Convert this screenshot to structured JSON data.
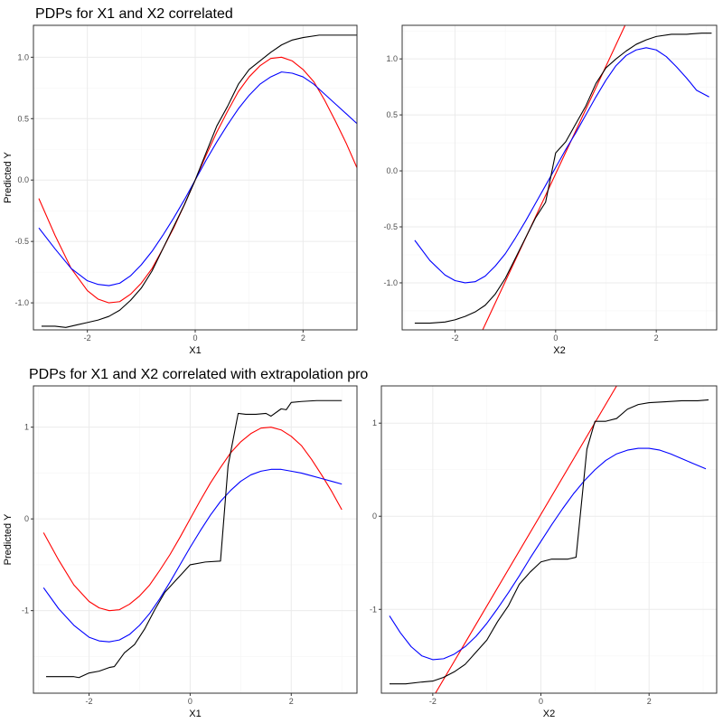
{
  "row_titles": [
    "PDPs for X1 and X2 correlated",
    "PDPs for X1 and X2 correlated with extrapolation pro"
  ],
  "chart_data": [
    {
      "type": "line",
      "xlabel": "X1",
      "ylabel": "Predicted Y",
      "xlim": [
        -3.0,
        3.0
      ],
      "ylim": [
        -1.22,
        1.26
      ],
      "xticks": [
        -2,
        0,
        2
      ],
      "yticks": [
        -1.0,
        -0.5,
        0.0,
        0.5,
        1.0
      ],
      "ytick_labels": [
        "-1.0",
        "-0.5",
        "0.0",
        "0.5",
        "1.0"
      ],
      "grid": true,
      "series": [
        {
          "color": "#ff0000",
          "x": [
            -2.9,
            -2.6,
            -2.3,
            -2.0,
            -1.8,
            -1.6,
            -1.4,
            -1.2,
            -1.0,
            -0.8,
            -0.6,
            -0.4,
            -0.2,
            0,
            0.2,
            0.4,
            0.6,
            0.8,
            1.0,
            1.2,
            1.4,
            1.6,
            1.8,
            2.0,
            2.2,
            2.4,
            2.6,
            2.8,
            3.0
          ],
          "y": [
            -0.15,
            -0.45,
            -0.72,
            -0.9,
            -0.97,
            -1.0,
            -0.99,
            -0.93,
            -0.84,
            -0.72,
            -0.56,
            -0.39,
            -0.2,
            0,
            0.2,
            0.39,
            0.56,
            0.72,
            0.84,
            0.93,
            0.99,
            1.0,
            0.97,
            0.9,
            0.8,
            0.65,
            0.48,
            0.3,
            0.1
          ]
        },
        {
          "color": "#0000ff",
          "x": [
            -2.9,
            -2.6,
            -2.3,
            -2.0,
            -1.8,
            -1.6,
            -1.4,
            -1.2,
            -1.0,
            -0.8,
            -0.6,
            -0.4,
            -0.2,
            0,
            0.2,
            0.4,
            0.6,
            0.8,
            1.0,
            1.2,
            1.4,
            1.6,
            1.8,
            2.0,
            2.2,
            2.4,
            2.6,
            2.8,
            3.0
          ],
          "y": [
            -0.39,
            -0.56,
            -0.72,
            -0.82,
            -0.85,
            -0.86,
            -0.84,
            -0.78,
            -0.69,
            -0.58,
            -0.45,
            -0.31,
            -0.16,
            0.0,
            0.16,
            0.31,
            0.45,
            0.58,
            0.69,
            0.78,
            0.84,
            0.88,
            0.87,
            0.84,
            0.78,
            0.7,
            0.62,
            0.54,
            0.46
          ]
        },
        {
          "color": "#000000",
          "x": [
            -2.85,
            -2.6,
            -2.4,
            -2.2,
            -2.0,
            -1.8,
            -1.6,
            -1.4,
            -1.2,
            -1.0,
            -0.8,
            -0.6,
            -0.4,
            -0.2,
            0,
            0.2,
            0.4,
            0.6,
            0.8,
            1.0,
            1.2,
            1.4,
            1.6,
            1.8,
            2.0,
            2.3,
            2.6,
            2.9,
            3.0
          ],
          "y": [
            -1.19,
            -1.19,
            -1.2,
            -1.18,
            -1.16,
            -1.14,
            -1.11,
            -1.06,
            -0.98,
            -0.88,
            -0.74,
            -0.56,
            -0.38,
            -0.2,
            0.0,
            0.22,
            0.44,
            0.6,
            0.78,
            0.9,
            0.97,
            1.04,
            1.1,
            1.14,
            1.16,
            1.18,
            1.18,
            1.18,
            1.18
          ]
        }
      ]
    },
    {
      "type": "line",
      "xlabel": "X2",
      "ylabel": "",
      "xlim": [
        -3.05,
        3.2
      ],
      "ylim": [
        -1.42,
        1.3
      ],
      "xticks": [
        -2,
        0,
        2
      ],
      "yticks": [
        -1.0,
        -0.5,
        0.0,
        0.5,
        1.0
      ],
      "ytick_labels": [
        "-1.0",
        "-0.5",
        "0.0",
        "0.5",
        "1.0"
      ],
      "grid": true,
      "series": [
        {
          "color": "#ff0000",
          "x": [
            -1.45,
            1.38
          ],
          "y": [
            -1.42,
            1.3
          ]
        },
        {
          "color": "#0000ff",
          "x": [
            -2.8,
            -2.5,
            -2.2,
            -2.0,
            -1.8,
            -1.6,
            -1.4,
            -1.2,
            -1.0,
            -0.8,
            -0.6,
            -0.4,
            -0.2,
            0,
            0.2,
            0.4,
            0.6,
            0.8,
            1.0,
            1.2,
            1.4,
            1.6,
            1.8,
            2.0,
            2.2,
            2.4,
            2.6,
            2.8,
            3.05
          ],
          "y": [
            -0.62,
            -0.8,
            -0.93,
            -0.98,
            -1.0,
            -0.99,
            -0.94,
            -0.85,
            -0.74,
            -0.6,
            -0.45,
            -0.29,
            -0.13,
            0.03,
            0.19,
            0.34,
            0.5,
            0.66,
            0.81,
            0.94,
            1.03,
            1.08,
            1.1,
            1.08,
            1.02,
            0.93,
            0.83,
            0.72,
            0.66
          ]
        },
        {
          "color": "#000000",
          "x": [
            -2.8,
            -2.5,
            -2.2,
            -2.0,
            -1.8,
            -1.6,
            -1.4,
            -1.2,
            -1.0,
            -0.8,
            -0.6,
            -0.4,
            -0.2,
            0,
            0.2,
            0.4,
            0.6,
            0.8,
            1.0,
            1.2,
            1.4,
            1.6,
            1.8,
            2.0,
            2.3,
            2.6,
            2.9,
            3.1
          ],
          "y": [
            -1.36,
            -1.36,
            -1.35,
            -1.33,
            -1.3,
            -1.26,
            -1.2,
            -1.1,
            -0.96,
            -0.78,
            -0.6,
            -0.42,
            -0.28,
            0.16,
            0.26,
            0.42,
            0.58,
            0.78,
            0.92,
            1.0,
            1.07,
            1.13,
            1.17,
            1.2,
            1.22,
            1.22,
            1.23,
            1.23
          ]
        }
      ]
    },
    {
      "type": "line",
      "xlabel": "X1",
      "ylabel": "Predicted Y",
      "xlim": [
        -3.1,
        3.3
      ],
      "ylim": [
        -1.9,
        1.45
      ],
      "xticks": [
        -2,
        0,
        2
      ],
      "yticks": [
        -1,
        0,
        1
      ],
      "ytick_labels": [
        "-1",
        "0",
        "1"
      ],
      "grid": true,
      "series": [
        {
          "color": "#ff0000",
          "x": [
            -2.9,
            -2.6,
            -2.3,
            -2.0,
            -1.8,
            -1.6,
            -1.4,
            -1.2,
            -1.0,
            -0.8,
            -0.6,
            -0.4,
            -0.2,
            0,
            0.2,
            0.4,
            0.6,
            0.8,
            1.0,
            1.2,
            1.4,
            1.6,
            1.8,
            2.0,
            2.2,
            2.4,
            2.6,
            2.8,
            3.0
          ],
          "y": [
            -0.15,
            -0.45,
            -0.72,
            -0.9,
            -0.97,
            -1.0,
            -0.99,
            -0.93,
            -0.84,
            -0.72,
            -0.56,
            -0.39,
            -0.2,
            0,
            0.2,
            0.39,
            0.56,
            0.72,
            0.84,
            0.93,
            0.99,
            1.0,
            0.97,
            0.9,
            0.8,
            0.65,
            0.48,
            0.3,
            0.1
          ]
        },
        {
          "color": "#0000ff",
          "x": [
            -2.9,
            -2.6,
            -2.3,
            -2.0,
            -1.8,
            -1.6,
            -1.4,
            -1.2,
            -1.0,
            -0.8,
            -0.6,
            -0.4,
            -0.2,
            0,
            0.2,
            0.4,
            0.6,
            0.8,
            1.0,
            1.2,
            1.4,
            1.6,
            1.8,
            2.0,
            2.2,
            2.4,
            2.6,
            2.8,
            3.0
          ],
          "y": [
            -0.75,
            -0.98,
            -1.16,
            -1.29,
            -1.33,
            -1.34,
            -1.32,
            -1.26,
            -1.16,
            -1.03,
            -0.87,
            -0.69,
            -0.5,
            -0.31,
            -0.13,
            0.04,
            0.19,
            0.31,
            0.41,
            0.48,
            0.52,
            0.54,
            0.54,
            0.52,
            0.5,
            0.47,
            0.44,
            0.41,
            0.38
          ]
        },
        {
          "color": "#000000",
          "x": [
            -2.85,
            -2.6,
            -2.3,
            -2.2,
            -2.0,
            -1.8,
            -1.6,
            -1.5,
            -1.3,
            -1.1,
            -0.9,
            -0.7,
            -0.5,
            -0.3,
            -0.1,
            0,
            0.3,
            0.6,
            0.75,
            0.95,
            1.1,
            1.3,
            1.5,
            1.6,
            1.8,
            1.9,
            2.0,
            2.2,
            2.5,
            2.8,
            3.0
          ],
          "y": [
            -1.72,
            -1.72,
            -1.72,
            -1.73,
            -1.68,
            -1.66,
            -1.62,
            -1.61,
            -1.46,
            -1.37,
            -1.2,
            -0.99,
            -0.8,
            -0.68,
            -0.56,
            -0.5,
            -0.47,
            -0.46,
            0.58,
            1.15,
            1.14,
            1.14,
            1.15,
            1.12,
            1.2,
            1.19,
            1.27,
            1.28,
            1.29,
            1.29,
            1.29
          ]
        }
      ]
    },
    {
      "type": "line",
      "xlabel": "X2",
      "ylabel": "",
      "xlim": [
        -2.95,
        3.25
      ],
      "ylim": [
        -1.9,
        1.4
      ],
      "xticks": [
        -2,
        0,
        2
      ],
      "yticks": [
        -1,
        0,
        1
      ],
      "ytick_labels": [
        "-1",
        "0",
        "1"
      ],
      "grid": true,
      "series": [
        {
          "color": "#ff0000",
          "x": [
            -1.95,
            1.4
          ],
          "y": [
            -1.9,
            1.4
          ]
        },
        {
          "color": "#0000ff",
          "x": [
            -2.8,
            -2.6,
            -2.4,
            -2.2,
            -2.0,
            -1.8,
            -1.6,
            -1.4,
            -1.2,
            -1.0,
            -0.8,
            -0.6,
            -0.4,
            -0.2,
            0,
            0.2,
            0.4,
            0.6,
            0.8,
            1.0,
            1.2,
            1.4,
            1.6,
            1.8,
            2.0,
            2.2,
            2.4,
            2.6,
            2.8,
            3.05
          ],
          "y": [
            -1.07,
            -1.25,
            -1.4,
            -1.5,
            -1.54,
            -1.53,
            -1.48,
            -1.4,
            -1.29,
            -1.15,
            -0.99,
            -0.82,
            -0.64,
            -0.45,
            -0.27,
            -0.09,
            0.08,
            0.24,
            0.38,
            0.5,
            0.6,
            0.67,
            0.71,
            0.73,
            0.73,
            0.71,
            0.67,
            0.62,
            0.57,
            0.51
          ]
        },
        {
          "color": "#000000",
          "x": [
            -2.8,
            -2.5,
            -2.2,
            -2.0,
            -1.8,
            -1.6,
            -1.4,
            -1.2,
            -1.0,
            -0.8,
            -0.6,
            -0.4,
            -0.2,
            0,
            0.2,
            0.5,
            0.65,
            0.85,
            1.0,
            1.2,
            1.4,
            1.6,
            1.8,
            2.0,
            2.3,
            2.6,
            2.9,
            3.1
          ],
          "y": [
            -1.8,
            -1.8,
            -1.78,
            -1.77,
            -1.73,
            -1.67,
            -1.59,
            -1.46,
            -1.33,
            -1.13,
            -0.96,
            -0.73,
            -0.6,
            -0.49,
            -0.46,
            -0.46,
            -0.44,
            0.72,
            1.02,
            1.02,
            1.05,
            1.15,
            1.2,
            1.22,
            1.23,
            1.24,
            1.24,
            1.25
          ]
        }
      ]
    }
  ]
}
